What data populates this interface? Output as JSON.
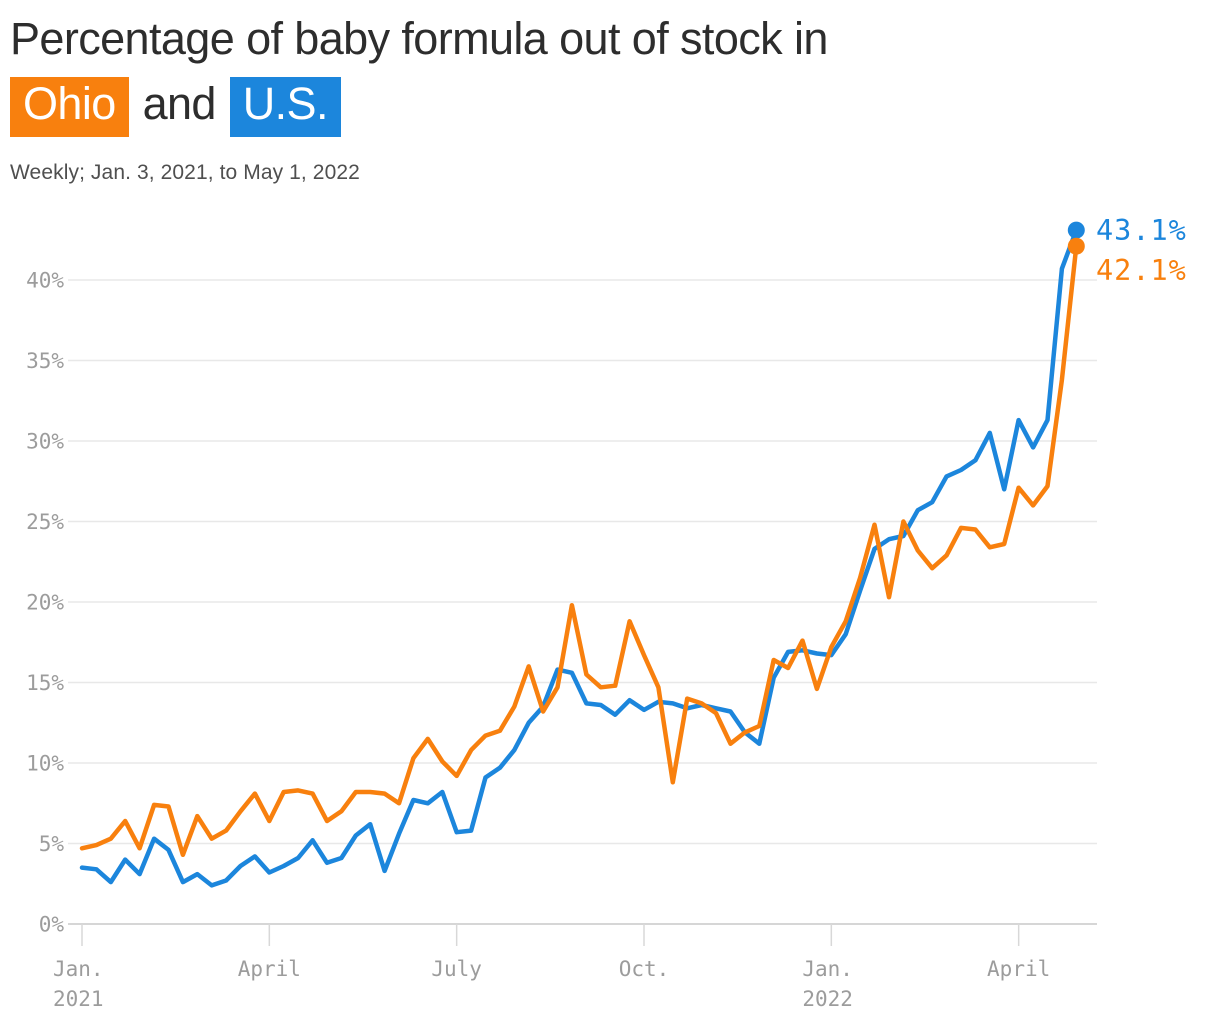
{
  "header": {
    "title_prefix": "Percentage of baby formula out of stock in",
    "highlight_ohio": "Ohio",
    "conjunction": "and",
    "highlight_us": "U.S.",
    "subtitle": "Weekly; Jan. 3, 2021, to May 1, 2022"
  },
  "colors": {
    "ohio_orange": "#f8800e",
    "us_blue": "#1c86dc",
    "title_text": "#2d2d2d",
    "subtitle_text": "#4f4f4f",
    "axis_text": "#9c9c9c",
    "gridline": "#e8e8e8",
    "baseline": "#c9c9c9",
    "tick": "#d8d8d8"
  },
  "chart_data": {
    "type": "line",
    "title": "Percentage of baby formula out of stock in Ohio and U.S.",
    "subtitle": "Weekly; Jan. 3, 2021, to May 1, 2022",
    "x_unit": "week",
    "x_range": [
      "Jan. 3, 2021",
      "May 1, 2022"
    ],
    "ylim": [
      0,
      45
    ],
    "yticks": [
      0,
      5,
      10,
      15,
      20,
      25,
      30,
      35,
      40
    ],
    "ytick_suffix": "%",
    "grid": true,
    "legend_position": "title-highlights",
    "xticks": [
      {
        "index": 0,
        "lines": [
          "Jan.",
          "2021"
        ]
      },
      {
        "index": 13,
        "lines": [
          "April"
        ]
      },
      {
        "index": 26,
        "lines": [
          "July"
        ]
      },
      {
        "index": 39,
        "lines": [
          "Oct."
        ]
      },
      {
        "index": 52,
        "lines": [
          "Jan.",
          "2022"
        ]
      },
      {
        "index": 65,
        "lines": [
          "April"
        ]
      }
    ],
    "series": [
      {
        "name": "U.S.",
        "color": "#1c86dc",
        "end_label": "43.1%",
        "values": [
          3.5,
          3.4,
          2.6,
          4.0,
          3.1,
          5.3,
          4.6,
          2.6,
          3.1,
          2.4,
          2.7,
          3.6,
          4.2,
          3.2,
          3.6,
          4.1,
          5.2,
          3.8,
          4.1,
          5.5,
          6.2,
          3.3,
          5.6,
          7.7,
          7.5,
          8.2,
          5.7,
          5.8,
          9.1,
          9.7,
          10.8,
          12.5,
          13.5,
          15.8,
          15.6,
          13.7,
          13.6,
          13.0,
          13.9,
          13.3,
          13.8,
          13.7,
          13.4,
          13.6,
          13.4,
          13.2,
          11.9,
          11.2,
          15.3,
          16.9,
          17.0,
          16.8,
          16.7,
          18.0,
          20.7,
          23.3,
          23.9,
          24.1,
          25.7,
          26.2,
          27.8,
          28.2,
          28.8,
          30.5,
          27.0,
          31.3,
          29.6,
          31.3,
          40.7,
          43.1
        ]
      },
      {
        "name": "Ohio",
        "color": "#f8800e",
        "end_label": "42.1%",
        "values": [
          4.7,
          4.9,
          5.3,
          6.4,
          4.7,
          7.4,
          7.3,
          4.3,
          6.7,
          5.3,
          5.8,
          7.0,
          8.1,
          6.4,
          8.2,
          8.3,
          8.1,
          6.4,
          7.0,
          8.2,
          8.2,
          8.1,
          7.5,
          10.3,
          11.5,
          10.1,
          9.2,
          10.8,
          11.7,
          12.0,
          13.5,
          16.0,
          13.2,
          14.7,
          19.8,
          15.5,
          14.7,
          14.8,
          18.8,
          16.7,
          14.7,
          8.8,
          14.0,
          13.7,
          13.1,
          11.2,
          11.9,
          12.3,
          16.4,
          15.9,
          17.6,
          14.6,
          17.2,
          18.8,
          21.5,
          24.8,
          20.3,
          25.0,
          23.2,
          22.1,
          22.9,
          24.6,
          24.5,
          23.4,
          23.6,
          27.1,
          26.0,
          27.2,
          33.8,
          42.1
        ]
      }
    ]
  }
}
